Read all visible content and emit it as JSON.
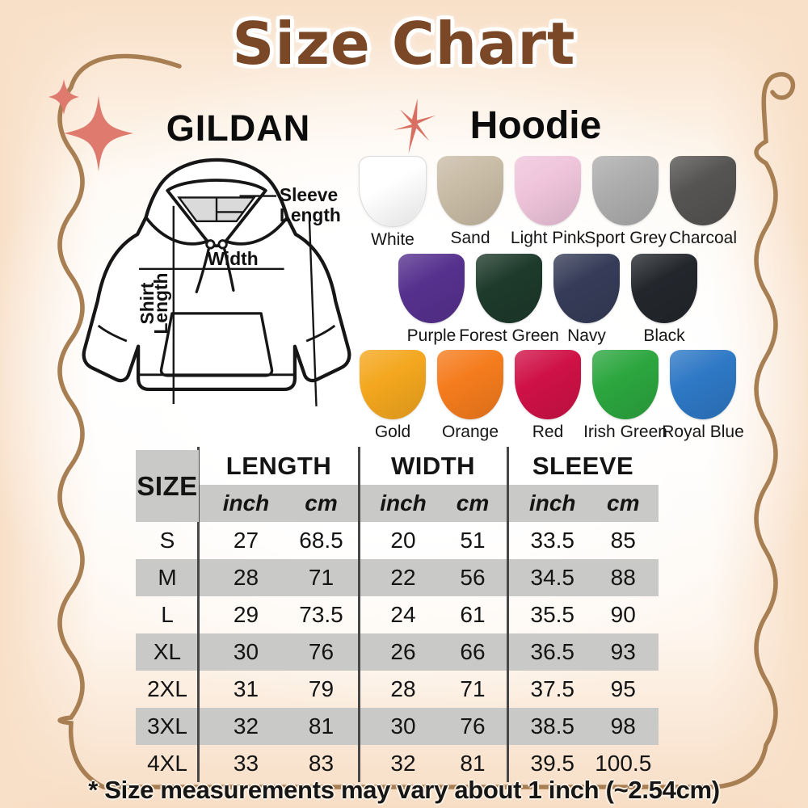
{
  "page": {
    "title": "Size Chart",
    "footnote": "* Size measurements may vary about 1 inch (~2.54cm)"
  },
  "brand": {
    "name": "GILDAN",
    "product": "Hoodie"
  },
  "diagram": {
    "sleeve_line1": "Sleeve",
    "sleeve_line2": "Length",
    "width_label": "Width",
    "shirt_line1": "Shirt",
    "shirt_line2": "Length"
  },
  "colors": {
    "rows": [
      [
        {
          "name": "White",
          "hex": "#FFFFFF"
        },
        {
          "name": "Sand",
          "hex": "#C9BCA6"
        },
        {
          "name": "Light Pink",
          "hex": "#EFC4DB"
        },
        {
          "name": "Sport Grey",
          "hex": "#ADADAD"
        },
        {
          "name": "Charcoal",
          "hex": "#565452"
        }
      ],
      [
        {
          "name": "Purple",
          "hex": "#56318E"
        },
        {
          "name": "Forest Green",
          "hex": "#1D3A2B"
        },
        {
          "name": "Navy",
          "hex": "#363C58"
        },
        {
          "name": "Black",
          "hex": "#23272C"
        }
      ],
      [
        {
          "name": "Gold",
          "hex": "#F4A71E"
        },
        {
          "name": "Orange",
          "hex": "#F57C1D"
        },
        {
          "name": "Red",
          "hex": "#CF1147"
        },
        {
          "name": "Irish Green",
          "hex": "#2CA63F"
        },
        {
          "name": "Royal Blue",
          "hex": "#2E78C5"
        }
      ]
    ]
  },
  "size_table": {
    "size_header": "SIZE",
    "groups": [
      "LENGTH",
      "WIDTH",
      "SLEEVE"
    ],
    "unit_headers": [
      "inch",
      "cm"
    ],
    "rows": [
      {
        "size": "S",
        "values": [
          "27",
          "68.5",
          "20",
          "51",
          "33.5",
          "85"
        ]
      },
      {
        "size": "M",
        "values": [
          "28",
          "71",
          "22",
          "56",
          "34.5",
          "88"
        ]
      },
      {
        "size": "L",
        "values": [
          "29",
          "73.5",
          "24",
          "61",
          "35.5",
          "90"
        ]
      },
      {
        "size": "XL",
        "values": [
          "30",
          "76",
          "26",
          "66",
          "36.5",
          "93"
        ]
      },
      {
        "size": "2XL",
        "values": [
          "31",
          "79",
          "28",
          "71",
          "37.5",
          "95"
        ]
      },
      {
        "size": "3XL",
        "values": [
          "32",
          "81",
          "30",
          "76",
          "38.5",
          "98"
        ]
      },
      {
        "size": "4XL",
        "values": [
          "33",
          "83",
          "32",
          "81",
          "39.5",
          "100.5"
        ]
      }
    ]
  },
  "chart_data": {
    "type": "table",
    "columns": [
      "SIZE",
      "LENGTH inch",
      "LENGTH cm",
      "WIDTH inch",
      "WIDTH cm",
      "SLEEVE inch",
      "SLEEVE cm"
    ],
    "rows": [
      [
        "S",
        "27",
        "68.5",
        "20",
        "51",
        "33.5",
        "85"
      ],
      [
        "M",
        "28",
        "71",
        "22",
        "56",
        "34.5",
        "88"
      ],
      [
        "L",
        "29",
        "73.5",
        "24",
        "61",
        "35.5",
        "90"
      ],
      [
        "XL",
        "30",
        "76",
        "26",
        "66",
        "36.5",
        "93"
      ],
      [
        "2XL",
        "31",
        "79",
        "28",
        "71",
        "37.5",
        "95"
      ],
      [
        "3XL",
        "32",
        "81",
        "30",
        "76",
        "38.5",
        "98"
      ],
      [
        "4XL",
        "33",
        "83",
        "32",
        "81",
        "39.5",
        "100.5"
      ]
    ]
  },
  "theme": {
    "title_brown": "#7B4827",
    "frame_tan": "#A87E53",
    "sparkle_coral": "#DE7A6E",
    "starburst_coral": "#D96F63",
    "table_band_grey": "#C9C9C7",
    "divider_grey": "#474747",
    "ink": "#141414"
  }
}
